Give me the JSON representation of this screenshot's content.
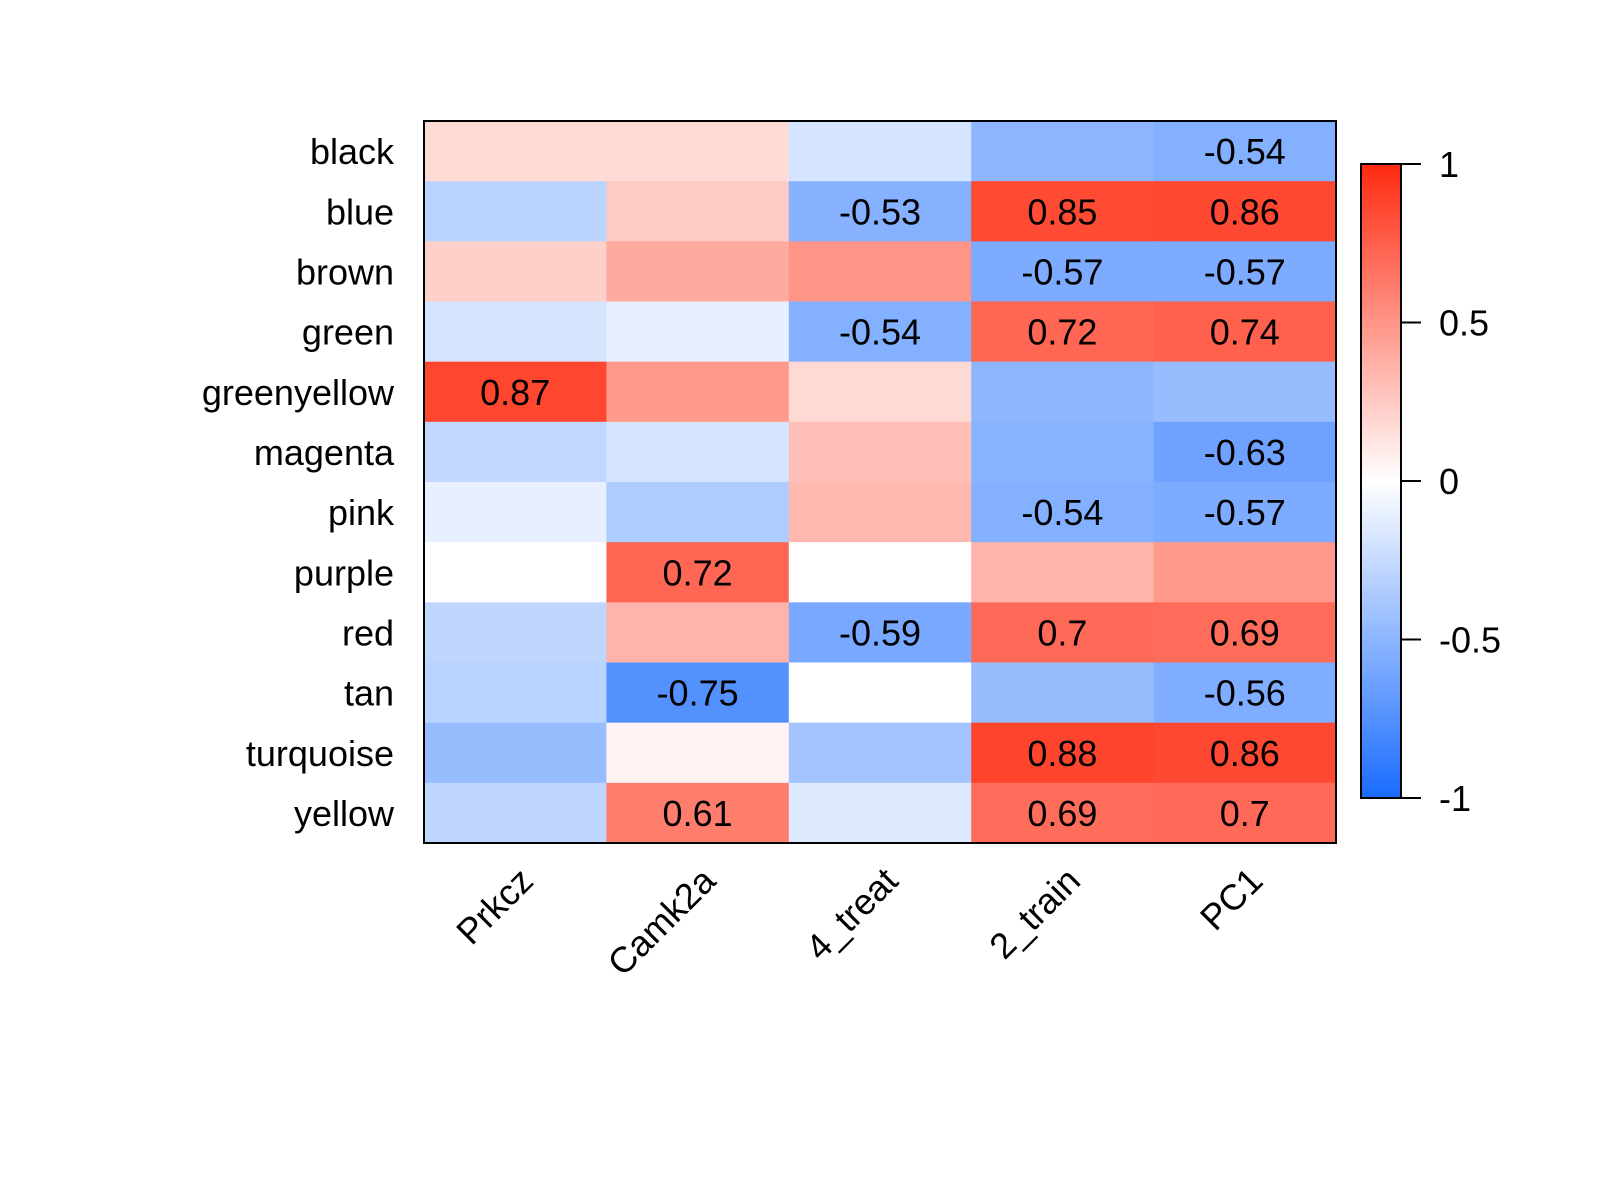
{
  "chart_data": {
    "type": "heatmap",
    "title": "",
    "rows": [
      "black",
      "blue",
      "brown",
      "green",
      "greenyellow",
      "magenta",
      "pink",
      "purple",
      "red",
      "tan",
      "turquoise",
      "yellow"
    ],
    "columns": [
      "Prkcz",
      "Camk2a",
      "4_treat",
      "2_train",
      "PC1"
    ],
    "values": [
      [
        0.17,
        0.17,
        -0.18,
        -0.5,
        -0.54
      ],
      [
        -0.3,
        0.25,
        -0.53,
        0.85,
        0.86
      ],
      [
        0.22,
        0.4,
        0.5,
        -0.57,
        -0.57
      ],
      [
        -0.18,
        -0.1,
        -0.54,
        0.72,
        0.74
      ],
      [
        0.87,
        0.48,
        0.18,
        -0.5,
        -0.45
      ],
      [
        -0.27,
        -0.18,
        0.3,
        -0.52,
        -0.63
      ],
      [
        -0.1,
        -0.35,
        0.33,
        -0.54,
        -0.57
      ],
      [
        0.0,
        0.72,
        0.0,
        0.35,
        0.48
      ],
      [
        -0.28,
        0.35,
        -0.59,
        0.7,
        0.69
      ],
      [
        -0.3,
        -0.75,
        0.0,
        -0.45,
        -0.56
      ],
      [
        -0.45,
        0.05,
        -0.4,
        0.88,
        0.86
      ],
      [
        -0.28,
        0.61,
        -0.15,
        0.69,
        0.7
      ]
    ],
    "labels": [
      [
        "",
        "",
        "",
        "",
        "-0.54"
      ],
      [
        "",
        "",
        "-0.53",
        "0.85",
        "0.86"
      ],
      [
        "",
        "",
        "",
        "-0.57",
        "-0.57"
      ],
      [
        "",
        "",
        "-0.54",
        "0.72",
        "0.74"
      ],
      [
        "0.87",
        "",
        "",
        "",
        ""
      ],
      [
        "",
        "",
        "",
        "",
        "-0.63"
      ],
      [
        "",
        "",
        "",
        "-0.54",
        "-0.57"
      ],
      [
        "",
        "0.72",
        "",
        "",
        ""
      ],
      [
        "",
        "",
        "-0.59",
        "0.7",
        "0.69"
      ],
      [
        "",
        "-0.75",
        "",
        "",
        "-0.56"
      ],
      [
        "",
        "",
        "",
        "0.88",
        "0.86"
      ],
      [
        "",
        "0.61",
        "",
        "0.69",
        "0.7"
      ]
    ],
    "color_scale": {
      "min": -1,
      "mid": 0,
      "max": 1,
      "low_color": "#1a6cff",
      "mid_color": "#ffffff",
      "high_color": "#ff2a10",
      "ticks": [
        1,
        0.5,
        0,
        -0.5,
        -1
      ],
      "tick_labels": [
        "1",
        "0.5",
        "0",
        "-0.5",
        "-1"
      ]
    }
  }
}
